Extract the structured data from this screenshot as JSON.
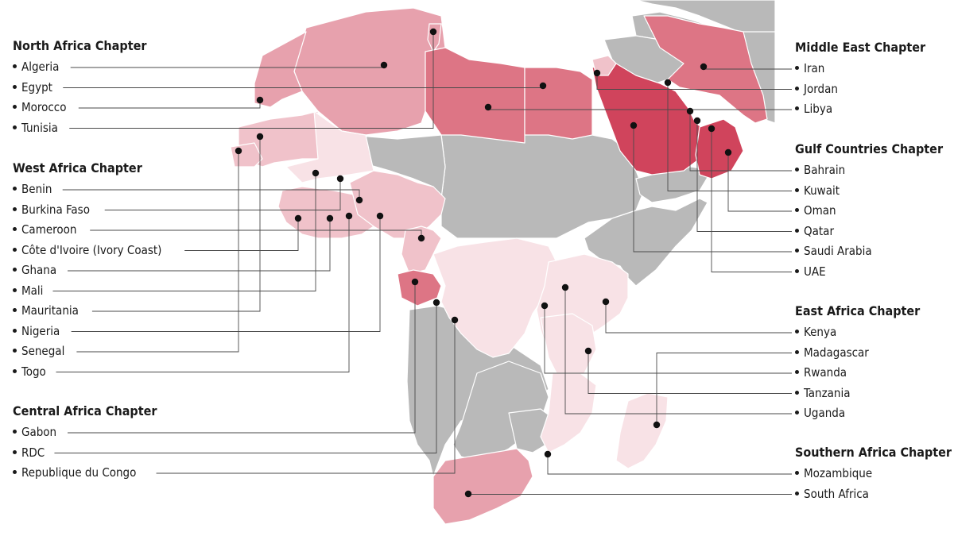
{
  "colors": {
    "grey": "#b9b9b9",
    "outline": "#ffffff",
    "pink_pale": "#f8e2e6",
    "pink_light": "#f0c2ca",
    "pink_mid": "#e7a1ad",
    "pink_dark": "#dd7585",
    "pink_deep": "#d0445c"
  },
  "chapters": [
    {
      "id": "north",
      "title": "North Africa Chapter",
      "side": "left",
      "countries": [
        "Algeria",
        "Egypt",
        "Morocco",
        "Tunisia"
      ]
    },
    {
      "id": "west",
      "title": "West Africa Chapter",
      "side": "left",
      "countries": [
        "Benin",
        "Burkina Faso",
        "Cameroon",
        "Côte d'Ivoire (Ivory Coast)",
        "Ghana",
        "Mali",
        "Mauritania",
        "Nigeria",
        "Senegal",
        "Togo"
      ]
    },
    {
      "id": "central",
      "title": "Central Africa Chapter",
      "side": "left",
      "countries": [
        "Gabon",
        "RDC",
        "Republique du Congo"
      ]
    },
    {
      "id": "middle-east",
      "title": "Middle East Chapter",
      "side": "right",
      "countries": [
        "Iran",
        "Jordan",
        "Libya"
      ]
    },
    {
      "id": "gulf",
      "title": "Gulf Countries Chapter",
      "side": "right",
      "countries": [
        "Bahrain",
        "Kuwait",
        "Oman",
        "Qatar",
        "Saudi Arabia",
        "UAE"
      ]
    },
    {
      "id": "east",
      "title": "East Africa Chapter",
      "side": "right",
      "countries": [
        "Kenya",
        "Madagascar",
        "Rwanda",
        "Tanzania",
        "Uganda"
      ]
    },
    {
      "id": "southern",
      "title": "Southern Africa Chapter",
      "side": "right",
      "countries": [
        "Mozambique",
        "South Africa"
      ]
    }
  ]
}
